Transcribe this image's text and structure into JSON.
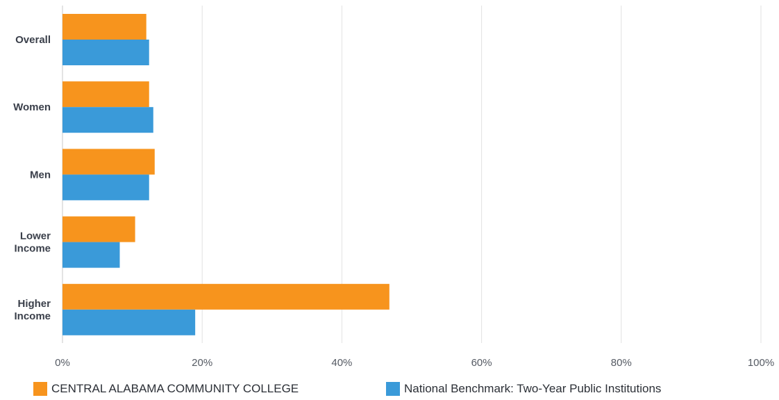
{
  "chart_data": {
    "type": "bar",
    "orientation": "horizontal",
    "categories": [
      [
        "Overall"
      ],
      [
        "Women"
      ],
      [
        "Men"
      ],
      [
        "Lower",
        "Income"
      ],
      [
        "Higher",
        "Income"
      ]
    ],
    "series": [
      {
        "name": "CENTRAL ALABAMA COMMUNITY COLLEGE",
        "color": "#F7941D",
        "values": [
          12,
          12.4,
          13.2,
          10.4,
          46.8
        ]
      },
      {
        "name": "National Benchmark: Two-Year Public Institutions",
        "color": "#3A9AD9",
        "values": [
          12.4,
          13,
          12.4,
          8.2,
          19
        ]
      }
    ],
    "xlim": [
      0,
      100
    ],
    "ticks": [
      0,
      20,
      40,
      60,
      80,
      100
    ],
    "tick_labels": [
      "0%",
      "20%",
      "40%",
      "60%",
      "80%",
      "100%"
    ],
    "grid": true,
    "legend": "bottom"
  }
}
